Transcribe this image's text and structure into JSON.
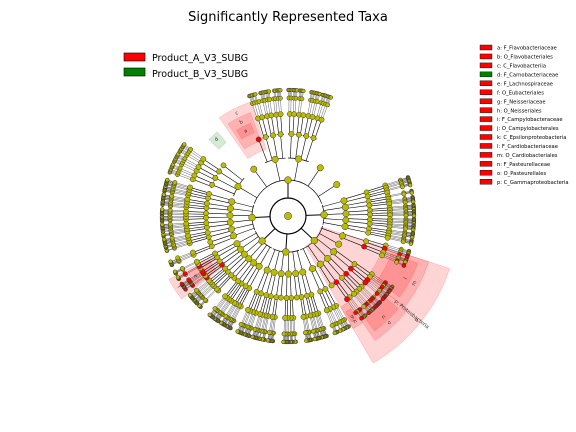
{
  "chart_data": {
    "type": "cladogram",
    "title": "Significantly Represented Taxa",
    "legend": [
      {
        "name": "Product_A_V3_SUBG",
        "color": "#ff0000"
      },
      {
        "name": "Product_B_V3_SUBG",
        "color": "#008000"
      }
    ],
    "taxa_key": [
      {
        "label": "a: F_Flavobacteriaceae",
        "color": "#ff0000"
      },
      {
        "label": "b: O_Flavobacteriales",
        "color": "#ff0000"
      },
      {
        "label": "c: C_Flavobacteriia",
        "color": "#ff0000"
      },
      {
        "label": "d: F_Carnobacteriaceae",
        "color": "#008000"
      },
      {
        "label": "e: F_Lachnospiraceae",
        "color": "#ff0000"
      },
      {
        "label": "f: O_Eubacteriales",
        "color": "#ff0000"
      },
      {
        "label": "g: F_Neisseriaceae",
        "color": "#ff0000"
      },
      {
        "label": "h: O_Neisseriales",
        "color": "#ff0000"
      },
      {
        "label": "i: F_Campylobacteraceae",
        "color": "#ff0000"
      },
      {
        "label": "j: O_Campylobacterales",
        "color": "#ff0000"
      },
      {
        "label": "k: C_Epsilonproteobacteria",
        "color": "#ff0000"
      },
      {
        "label": "l: F_Cardiobacteriaceae",
        "color": "#ff0000"
      },
      {
        "label": "m: O_Cardiobacteriales",
        "color": "#ff0000"
      },
      {
        "label": "n: F_Pasteurellaceae",
        "color": "#ff0000"
      },
      {
        "label": "o: O_Pasteurellales",
        "color": "#ff0000"
      },
      {
        "label": "p: C_Gammaproteobacteria",
        "color": "#ff0000"
      }
    ],
    "highlighted_clades": [
      {
        "letter": "c",
        "group": "Product_A_V3_SUBG"
      },
      {
        "letter": "b",
        "group": "Product_A_V3_SUBG"
      },
      {
        "letter": "a",
        "group": "Product_A_V3_SUBG"
      },
      {
        "letter": "d",
        "group": "Product_B_V3_SUBG"
      },
      {
        "letter": "f",
        "group": "Product_A_V3_SUBG"
      },
      {
        "letter": "e",
        "group": "Product_A_V3_SUBG"
      },
      {
        "letter": "p",
        "group": "Product_A_V3_SUBG"
      },
      {
        "letter": "m",
        "group": "Product_A_V3_SUBG"
      },
      {
        "letter": "l",
        "group": "Product_A_V3_SUBG"
      },
      {
        "letter": "o",
        "group": "Product_A_V3_SUBG"
      },
      {
        "letter": "n",
        "group": "Product_A_V3_SUBG"
      },
      {
        "letter": "h",
        "group": "Product_A_V3_SUBG"
      },
      {
        "letter": "g",
        "group": "Product_A_V3_SUBG"
      }
    ],
    "outer_label": "p: Proteobacteria",
    "node_color_default": "#bbbb00",
    "highlight_color": "#ff0000",
    "secondary_color": "#008000"
  }
}
